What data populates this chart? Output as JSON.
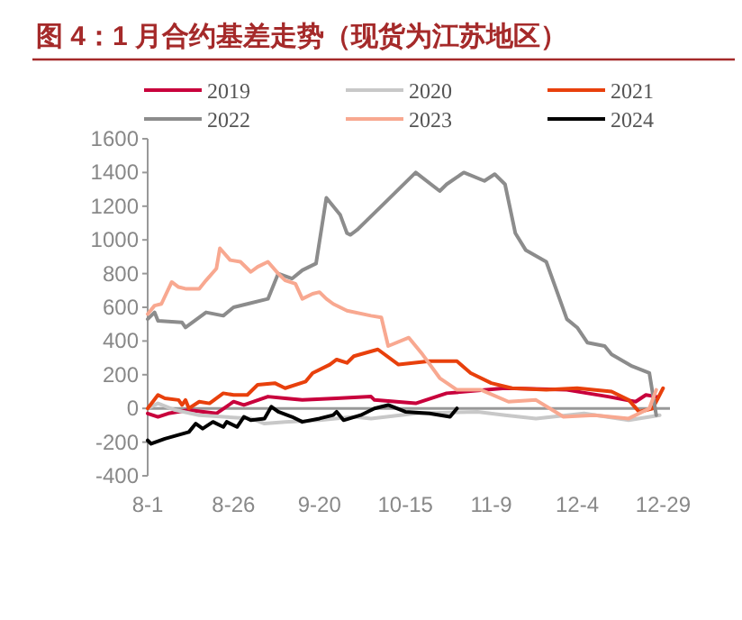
{
  "chart_data": {
    "type": "line",
    "title": "图 4：1 月合约基差走势（现货为江苏地区）",
    "legend": "top",
    "xlim": [
      "--08-01",
      "--12-31"
    ],
    "xticks": [
      {
        "value": "--08-01",
        "label": "8-1"
      },
      {
        "value": "--08-26",
        "label": "8-26"
      },
      {
        "value": "--09-20",
        "label": "9-20"
      },
      {
        "value": "--10-15",
        "label": "10-15"
      },
      {
        "value": "--11-09",
        "label": "11-9"
      },
      {
        "value": "--12-04",
        "label": "12-4"
      },
      {
        "value": "--12-29",
        "label": "12-29"
      }
    ],
    "ylim": [
      -400,
      1600
    ],
    "yticks": [
      -400,
      -200,
      0,
      200,
      400,
      600,
      800,
      1000,
      1200,
      1400,
      1600
    ],
    "series": [
      {
        "name": "2019",
        "color": "#c8003c",
        "x": [
          "--08-01",
          "--08-04",
          "--08-07",
          "--08-13",
          "--08-21",
          "--08-26",
          "--08-29",
          "--09-05",
          "--09-10",
          "--09-15",
          "--09-25",
          "--10-05",
          "--10-06",
          "--10-18",
          "--10-27",
          "--11-13",
          "--12-01",
          "--12-13",
          "--12-21",
          "--12-24",
          "--12-27"
        ],
        "values": [
          -30,
          -50,
          -30,
          -10,
          -30,
          40,
          20,
          70,
          60,
          50,
          60,
          70,
          50,
          30,
          90,
          120,
          110,
          70,
          40,
          80,
          70
        ]
      },
      {
        "name": "2020",
        "color": "#c8c8c8",
        "x": [
          "--08-01",
          "--08-04",
          "--08-09",
          "--08-16",
          "--08-23",
          "--08-31",
          "--09-04",
          "--09-10",
          "--09-20",
          "--09-30",
          "--10-05",
          "--10-18",
          "--11-05",
          "--11-13",
          "--11-22",
          "--12-06",
          "--12-19",
          "--12-28"
        ],
        "values": [
          0,
          30,
          -10,
          -40,
          -50,
          -60,
          -90,
          -80,
          -70,
          -50,
          -60,
          -30,
          -20,
          -40,
          -60,
          -30,
          -70,
          -40
        ]
      },
      {
        "name": "2021",
        "color": "#e8400c",
        "x": [
          "--08-01",
          "--08-04",
          "--08-06",
          "--08-10",
          "--08-11",
          "--08-12",
          "--08-13",
          "--08-16",
          "--08-19",
          "--08-23",
          "--08-26",
          "--08-30",
          "--09-02",
          "--09-07",
          "--09-10",
          "--09-16",
          "--09-18",
          "--09-23",
          "--09-25",
          "--09-28",
          "--09-30",
          "--10-07",
          "--10-13",
          "--10-22",
          "--10-30",
          "--11-03",
          "--11-09",
          "--11-15",
          "--11-25",
          "--12-04",
          "--12-14",
          "--12-19",
          "--12-22",
          "--12-26",
          "--12-29"
        ],
        "values": [
          0,
          80,
          60,
          50,
          20,
          50,
          0,
          40,
          30,
          90,
          80,
          80,
          140,
          150,
          120,
          160,
          210,
          260,
          290,
          270,
          310,
          350,
          260,
          280,
          280,
          210,
          150,
          120,
          110,
          120,
          100,
          50,
          -20,
          0,
          120
        ]
      },
      {
        "name": "2022",
        "color": "#8c8c8c",
        "x": [
          "--08-01",
          "--08-03",
          "--08-04",
          "--08-11",
          "--08-12",
          "--08-18",
          "--08-23",
          "--08-26",
          "--08-30",
          "--09-05",
          "--09-08",
          "--09-12",
          "--09-15",
          "--09-19",
          "--09-22",
          "--09-26",
          "--09-28",
          "--09-29",
          "--10-01",
          "--10-10",
          "--10-18",
          "--10-25",
          "--10-27",
          "--11-01",
          "--11-07",
          "--11-10",
          "--11-13",
          "--11-16",
          "--11-19",
          "--11-25",
          "--12-01",
          "--12-04",
          "--12-07",
          "--12-12",
          "--12-14",
          "--12-20",
          "--12-25",
          "--12-27"
        ],
        "values": [
          530,
          570,
          520,
          510,
          480,
          570,
          550,
          600,
          620,
          650,
          800,
          770,
          820,
          860,
          1250,
          1150,
          1040,
          1030,
          1060,
          1240,
          1400,
          1290,
          1330,
          1400,
          1350,
          1390,
          1330,
          1040,
          940,
          870,
          530,
          480,
          390,
          370,
          320,
          250,
          210,
          -40
        ]
      },
      {
        "name": "2023",
        "color": "#f8a890",
        "x": [
          "--08-01",
          "--08-03",
          "--08-05",
          "--08-08",
          "--08-10",
          "--08-12",
          "--08-16",
          "--08-18",
          "--08-21",
          "--08-22",
          "--08-25",
          "--08-28",
          "--08-31",
          "--09-02",
          "--09-05",
          "--09-08",
          "--09-10",
          "--09-13",
          "--09-15",
          "--09-18",
          "--09-20",
          "--09-22",
          "--09-24",
          "--09-28",
          "--10-05",
          "--10-08",
          "--10-10",
          "--10-16",
          "--10-20",
          "--10-25",
          "--10-30",
          "--11-06",
          "--11-14",
          "--11-22",
          "--11-30",
          "--12-09",
          "--12-19",
          "--12-25",
          "--12-27"
        ],
        "values": [
          560,
          610,
          620,
          750,
          720,
          710,
          710,
          760,
          830,
          950,
          880,
          870,
          810,
          840,
          870,
          800,
          760,
          740,
          650,
          680,
          690,
          650,
          620,
          580,
          550,
          540,
          370,
          420,
          320,
          180,
          110,
          110,
          40,
          50,
          -50,
          -40,
          -60,
          0,
          110
        ]
      },
      {
        "name": "2024",
        "color": "#000000",
        "x": [
          "--08-01",
          "--08-02",
          "--08-06",
          "--08-13",
          "--08-15",
          "--08-17",
          "--08-20",
          "--08-23",
          "--08-24",
          "--08-27",
          "--08-29",
          "--08-31",
          "--09-04",
          "--09-06",
          "--09-08",
          "--09-12",
          "--09-15",
          "--09-20",
          "--09-24",
          "--09-25",
          "--09-27",
          "--10-02",
          "--10-06",
          "--10-10",
          "--10-15",
          "--10-22",
          "--10-28",
          "--10-30"
        ],
        "values": [
          -190,
          -210,
          -180,
          -140,
          -90,
          -120,
          -80,
          -110,
          -80,
          -110,
          -50,
          -70,
          -60,
          10,
          -20,
          -50,
          -80,
          -60,
          -40,
          -20,
          -70,
          -40,
          0,
          20,
          -20,
          -30,
          -50,
          0
        ]
      }
    ]
  }
}
